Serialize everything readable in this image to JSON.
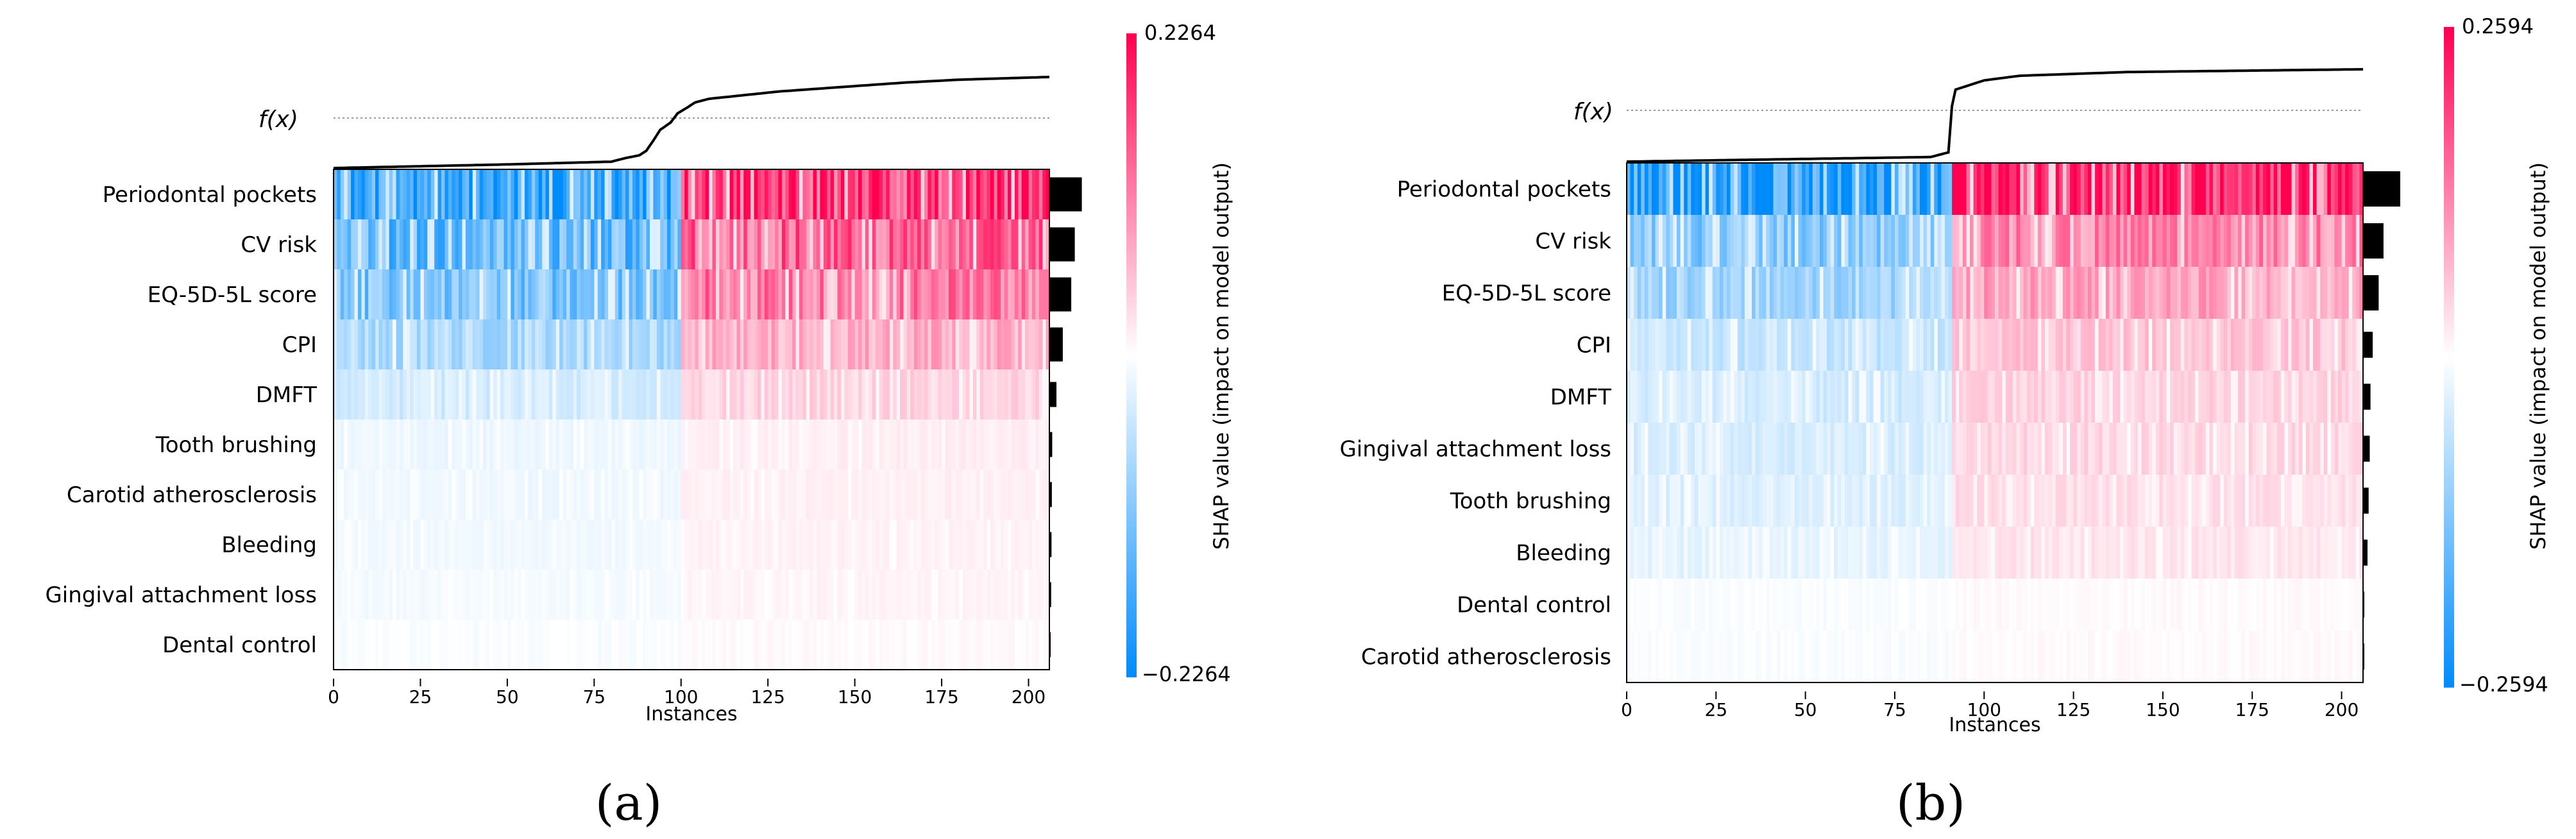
{
  "chart_data": [
    {
      "type": "heatmap",
      "panel_label": "(a)",
      "title": "",
      "xlabel": "Instances",
      "fx_label": "f(x)",
      "n_instances": 206,
      "xlim": [
        0,
        206
      ],
      "xticks": [
        0,
        25,
        50,
        75,
        100,
        125,
        150,
        175,
        200
      ],
      "colorbar": {
        "label": "SHAP value (impact on model output)",
        "max": 0.2264,
        "min": -0.2264,
        "max_label": "0.2264",
        "min_label": "−0.2264"
      },
      "features": [
        "Periodontal pockets",
        "CV risk",
        "EQ-5D-5L score",
        "CPI",
        "DMFT",
        "Tooth brushing",
        "Carotid atherosclerosis",
        "Bleeding",
        "Gingival attachment loss",
        "Dental control"
      ],
      "importance": [
        0.92,
        0.72,
        0.62,
        0.38,
        0.2,
        0.08,
        0.07,
        0.06,
        0.05,
        0.0
      ],
      "fx_profile": [
        [
          0,
          0.0
        ],
        [
          50,
          0.04
        ],
        [
          80,
          0.07
        ],
        [
          84,
          0.11
        ],
        [
          88,
          0.14
        ],
        [
          90,
          0.19
        ],
        [
          92,
          0.3
        ],
        [
          94,
          0.42
        ],
        [
          97,
          0.5
        ],
        [
          99,
          0.6
        ],
        [
          102,
          0.67
        ],
        [
          104,
          0.72
        ],
        [
          108,
          0.76
        ],
        [
          118,
          0.8
        ],
        [
          128,
          0.84
        ],
        [
          150,
          0.9
        ],
        [
          165,
          0.94
        ],
        [
          180,
          0.97
        ],
        [
          206,
          1.0
        ]
      ],
      "transition_instance": 100,
      "colors": {
        "positive": "#ff0051",
        "neutral": "#ffffff",
        "negative": "#008bfb"
      }
    },
    {
      "type": "heatmap",
      "panel_label": "(b)",
      "title": "",
      "xlabel": "Instances",
      "fx_label": "f(x)",
      "n_instances": 206,
      "xlim": [
        0,
        206
      ],
      "xticks": [
        0,
        25,
        50,
        75,
        100,
        125,
        150,
        175,
        200
      ],
      "colorbar": {
        "label": "SHAP value (impact on model output)",
        "max": 0.2594,
        "min": -0.2594,
        "max_label": "0.2594",
        "min_label": "−0.2594"
      },
      "features": [
        "Periodontal pockets",
        "CV risk",
        "EQ-5D-5L score",
        "CPI",
        "DMFT",
        "Gingival attachment loss",
        "Tooth brushing",
        "Bleeding",
        "Dental control",
        "Carotid atherosclerosis"
      ],
      "importance": [
        1.0,
        0.55,
        0.42,
        0.26,
        0.2,
        0.18,
        0.15,
        0.12,
        0.02,
        0.01
      ],
      "fx_profile": [
        [
          0,
          0.0
        ],
        [
          85,
          0.05
        ],
        [
          90,
          0.1
        ],
        [
          91,
          0.6
        ],
        [
          92,
          0.78
        ],
        [
          100,
          0.88
        ],
        [
          110,
          0.93
        ],
        [
          140,
          0.97
        ],
        [
          206,
          1.0
        ]
      ],
      "transition_instance": 91,
      "colors": {
        "positive": "#ff0051",
        "neutral": "#ffffff",
        "negative": "#008bfb"
      }
    }
  ]
}
